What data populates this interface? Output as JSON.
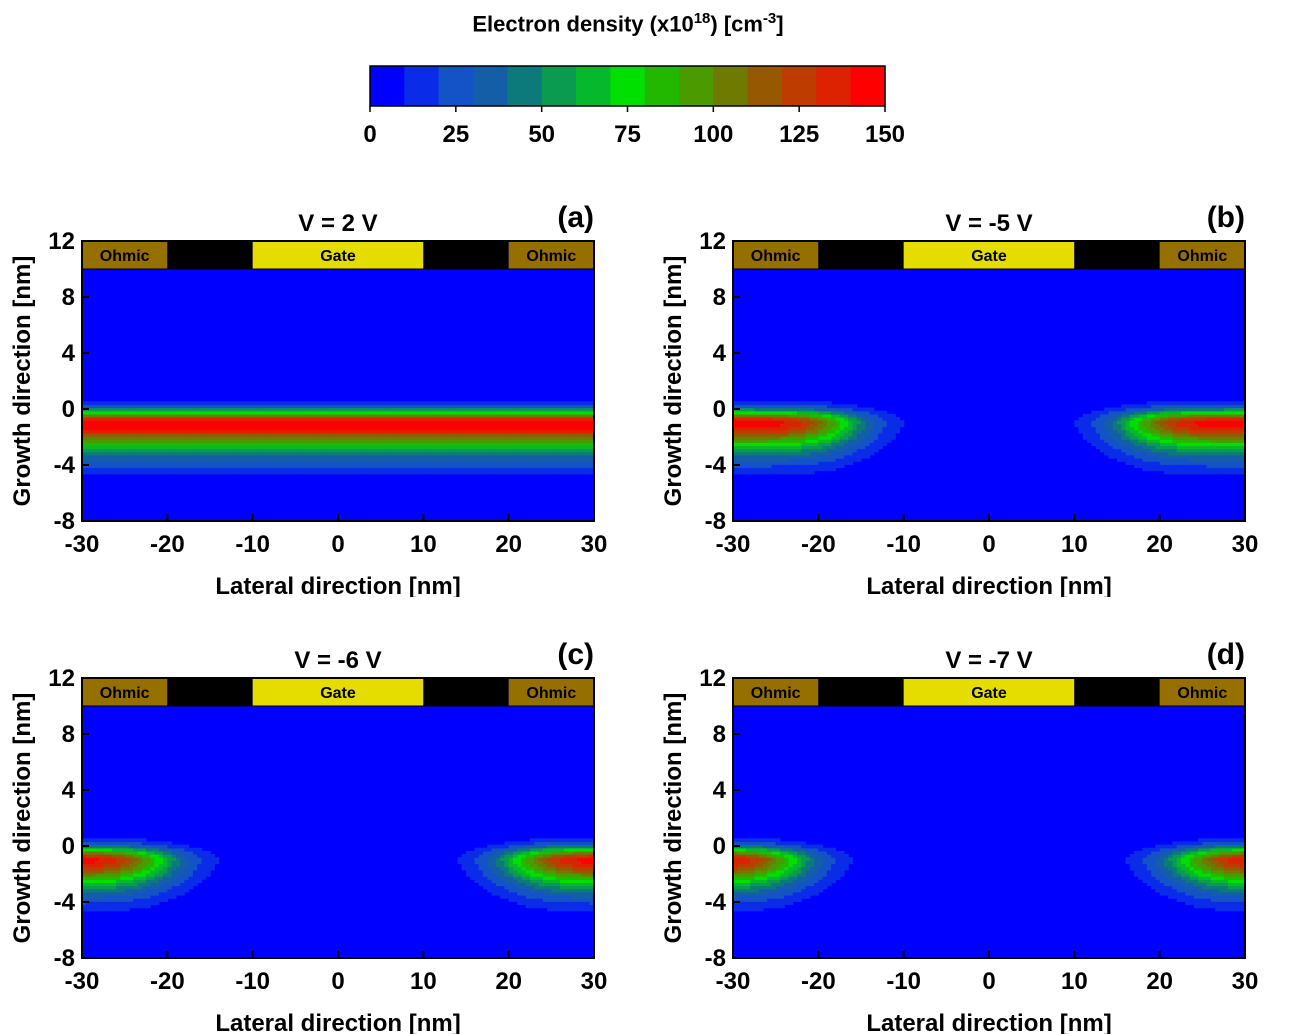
{
  "colorbar": {
    "title_main": "Electron density (x10",
    "title_exp": "18",
    "title_mid": ") [cm",
    "title_exp2": "-3",
    "title_end": "]",
    "ticks": [
      "0",
      "25",
      "50",
      "75",
      "100",
      "125",
      "150"
    ],
    "range": [
      0,
      150
    ],
    "levels": 15,
    "colors": [
      "#0000ff",
      "#0a2ce8",
      "#1452c8",
      "#145ea8",
      "#0c7a7a",
      "#0a9a50",
      "#06b82c",
      "#00e000",
      "#22b800",
      "#4a9a00",
      "#6e7a00",
      "#965800",
      "#be3c00",
      "#dc2200",
      "#ff0000"
    ]
  },
  "chart_data": [
    {
      "type": "heatmap",
      "panel_label": "(a)",
      "title": "V = 2 V",
      "xlabel": "Lateral direction [nm]",
      "ylabel": "Growth direction [nm]",
      "xlim": [
        -30,
        30
      ],
      "ylim": [
        -8,
        12
      ],
      "xticks": [
        "-30",
        "-20",
        "-10",
        "0",
        "10",
        "20",
        "30"
      ],
      "yticks": [
        "-8",
        "-4",
        "0",
        "4",
        "8",
        "12"
      ],
      "contacts": [
        {
          "label": "Ohmic",
          "x": [
            -30,
            -20
          ],
          "color": "#957000"
        },
        {
          "label": "",
          "x": [
            -20,
            -10
          ],
          "color": "#000000"
        },
        {
          "label": "Gate",
          "x": [
            -10,
            10
          ],
          "color": "#e6dd00"
        },
        {
          "label": "",
          "x": [
            10,
            20
          ],
          "color": "#000000"
        },
        {
          "label": "Ohmic",
          "x": [
            20,
            30
          ],
          "color": "#957000"
        }
      ],
      "contact_y": [
        10,
        12
      ],
      "density_peak_y": -1,
      "peak_density": 150,
      "depletion_half_width": 0
    },
    {
      "type": "heatmap",
      "panel_label": "(b)",
      "title": "V = -5 V",
      "xlabel": "Lateral direction [nm]",
      "ylabel": "Growth direction [nm]",
      "xlim": [
        -30,
        30
      ],
      "ylim": [
        -8,
        12
      ],
      "xticks": [
        "-30",
        "-20",
        "-10",
        "0",
        "10",
        "20",
        "30"
      ],
      "yticks": [
        "-8",
        "-4",
        "0",
        "4",
        "8",
        "12"
      ],
      "contacts": [
        {
          "label": "Ohmic",
          "x": [
            -30,
            -20
          ],
          "color": "#957000"
        },
        {
          "label": "",
          "x": [
            -20,
            -10
          ],
          "color": "#000000"
        },
        {
          "label": "Gate",
          "x": [
            -10,
            10
          ],
          "color": "#e6dd00"
        },
        {
          "label": "",
          "x": [
            10,
            20
          ],
          "color": "#000000"
        },
        {
          "label": "Ohmic",
          "x": [
            20,
            30
          ],
          "color": "#957000"
        }
      ],
      "contact_y": [
        10,
        12
      ],
      "density_peak_y": -1,
      "peak_density": 150,
      "depletion_half_width": 17
    },
    {
      "type": "heatmap",
      "panel_label": "(c)",
      "title": "V = -6 V",
      "xlabel": "Lateral direction [nm]",
      "ylabel": "Growth direction [nm]",
      "xlim": [
        -30,
        30
      ],
      "ylim": [
        -8,
        12
      ],
      "xticks": [
        "-30",
        "-20",
        "-10",
        "0",
        "10",
        "20",
        "30"
      ],
      "yticks": [
        "-8",
        "-4",
        "0",
        "4",
        "8",
        "12"
      ],
      "contacts": [
        {
          "label": "Ohmic",
          "x": [
            -30,
            -20
          ],
          "color": "#957000"
        },
        {
          "label": "",
          "x": [
            -20,
            -10
          ],
          "color": "#000000"
        },
        {
          "label": "Gate",
          "x": [
            -10,
            10
          ],
          "color": "#e6dd00"
        },
        {
          "label": "",
          "x": [
            10,
            20
          ],
          "color": "#000000"
        },
        {
          "label": "Ohmic",
          "x": [
            20,
            30
          ],
          "color": "#957000"
        }
      ],
      "contact_y": [
        10,
        12
      ],
      "density_peak_y": -1,
      "peak_density": 150,
      "depletion_half_width": 21
    },
    {
      "type": "heatmap",
      "panel_label": "(d)",
      "title": "V = -7 V",
      "xlabel": "Lateral direction [nm]",
      "ylabel": "Growth direction [nm]",
      "xlim": [
        -30,
        30
      ],
      "ylim": [
        -8,
        12
      ],
      "xticks": [
        "-30",
        "-20",
        "-10",
        "0",
        "10",
        "20",
        "30"
      ],
      "yticks": [
        "-8",
        "-4",
        "0",
        "4",
        "8",
        "12"
      ],
      "contacts": [
        {
          "label": "Ohmic",
          "x": [
            -30,
            -20
          ],
          "color": "#957000"
        },
        {
          "label": "",
          "x": [
            -20,
            -10
          ],
          "color": "#000000"
        },
        {
          "label": "Gate",
          "x": [
            -10,
            10
          ],
          "color": "#e6dd00"
        },
        {
          "label": "",
          "x": [
            10,
            20
          ],
          "color": "#000000"
        },
        {
          "label": "Ohmic",
          "x": [
            20,
            30
          ],
          "color": "#957000"
        }
      ],
      "contact_y": [
        10,
        12
      ],
      "density_peak_y": -1,
      "peak_density": 150,
      "depletion_half_width": 23
    }
  ]
}
